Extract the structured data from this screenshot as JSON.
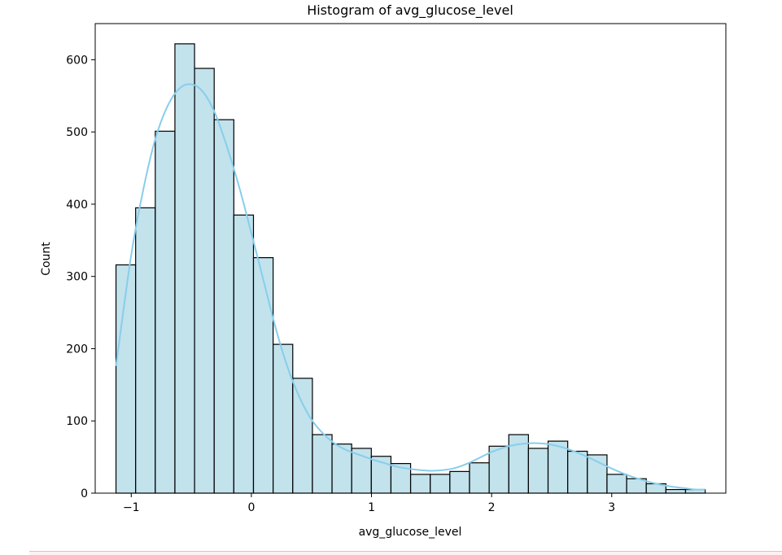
{
  "chart_data": {
    "type": "bar",
    "title": "Histogram of avg_glucose_level",
    "xlabel": "avg_glucose_level",
    "ylabel": "Count",
    "xlim": [
      -1.3,
      3.95
    ],
    "ylim": [
      0,
      650
    ],
    "x_ticks": [
      -1,
      0,
      1,
      2,
      3
    ],
    "x_tick_labels": [
      "−1",
      "0",
      "1",
      "2",
      "3"
    ],
    "y_ticks": [
      0,
      100,
      200,
      300,
      400,
      500,
      600
    ],
    "y_tick_labels": [
      "0",
      "100",
      "200",
      "300",
      "400",
      "500",
      "600"
    ],
    "bins": {
      "start": -1.127,
      "width": 0.1635,
      "counts": [
        316,
        395,
        501,
        622,
        588,
        517,
        385,
        326,
        206,
        159,
        81,
        68,
        62,
        51,
        41,
        26,
        26,
        30,
        42,
        65,
        81,
        62,
        72,
        58,
        53,
        26,
        20,
        13,
        5,
        5
      ]
    },
    "kde": {
      "x": [
        -1.127,
        -1.0,
        -0.9,
        -0.8,
        -0.7,
        -0.6,
        -0.5,
        -0.4,
        -0.3,
        -0.2,
        -0.1,
        0.0,
        0.1,
        0.2,
        0.3,
        0.4,
        0.5,
        0.6,
        0.7,
        0.8,
        0.9,
        1.0,
        1.1,
        1.2,
        1.3,
        1.4,
        1.5,
        1.6,
        1.7,
        1.8,
        1.9,
        2.0,
        2.1,
        2.2,
        2.3,
        2.4,
        2.5,
        2.6,
        2.7,
        2.8,
        2.9,
        3.0,
        3.1,
        3.2,
        3.3,
        3.4,
        3.5,
        3.6,
        3.7,
        3.778
      ],
      "y": [
        176,
        330,
        420,
        490,
        535,
        560,
        566,
        555,
        525,
        478,
        423,
        360,
        295,
        230,
        175,
        133,
        102,
        82,
        68,
        59,
        53,
        47,
        42,
        37,
        34,
        32,
        31,
        32,
        35,
        41,
        49,
        57,
        63,
        67,
        69,
        69,
        67,
        63,
        57,
        50,
        42,
        34,
        27,
        21,
        16,
        12,
        9,
        7,
        5,
        5
      ]
    },
    "bar_fill": "#add8e6",
    "bar_fill_opacity": 0.75,
    "bar_edge": "#000000",
    "kde_color": "#87ceeb",
    "grid": false,
    "legend": "none"
  }
}
